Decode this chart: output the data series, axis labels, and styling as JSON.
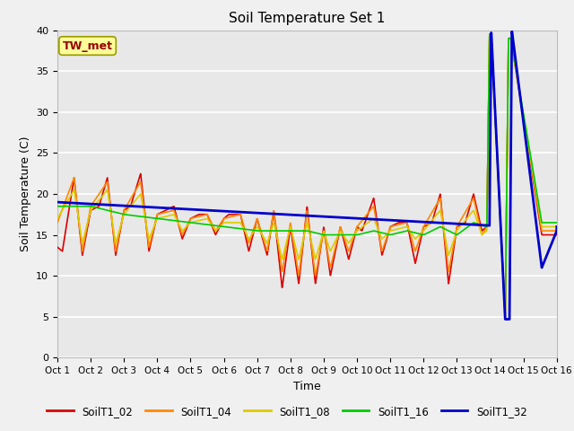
{
  "title": "Soil Temperature Set 1",
  "xlabel": "Time",
  "ylabel": "Soil Temperature (C)",
  "ylim": [
    0,
    40
  ],
  "xlim": [
    0,
    15
  ],
  "background_color": "#f0f0f0",
  "plot_bg_color": "#e8e8e8",
  "annotation_text": "TW_met",
  "annotation_bg": "#ffff99",
  "annotation_border": "#999900",
  "annotation_color": "#990000",
  "series": {
    "SoilT1_02": {
      "color": "#dd0000",
      "lw": 1.2
    },
    "SoilT1_04": {
      "color": "#ff8800",
      "lw": 1.2
    },
    "SoilT1_08": {
      "color": "#ddcc00",
      "lw": 1.2
    },
    "SoilT1_16": {
      "color": "#00cc00",
      "lw": 1.2
    },
    "SoilT1_32": {
      "color": "#0000cc",
      "lw": 2.0
    }
  },
  "tick_labels": [
    "Oct 1",
    "Oct 2",
    "Oct 3",
    "Oct 4",
    "Oct 5",
    "Oct 6",
    "Oct 7",
    "Oct 8",
    "Oct 9",
    "Oct 10",
    "Oct 11",
    "Oct 12",
    "Oct 13",
    "Oct 14",
    "Oct 15",
    "Oct 16"
  ],
  "yticks": [
    0,
    5,
    10,
    15,
    20,
    25,
    30,
    35,
    40
  ]
}
